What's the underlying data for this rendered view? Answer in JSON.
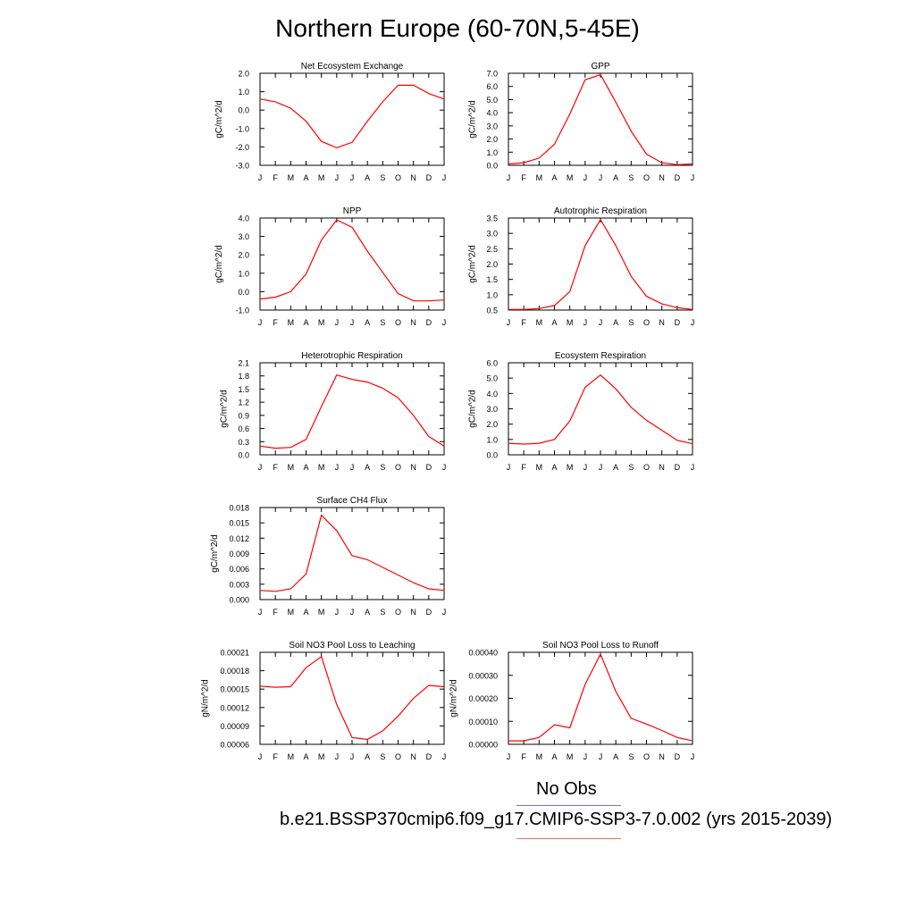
{
  "title": "Northern Europe (60-70N,5-45E)",
  "months": [
    "J",
    "F",
    "M",
    "A",
    "M",
    "J",
    "J",
    "A",
    "S",
    "O",
    "N",
    "D",
    "J"
  ],
  "legend": {
    "obs": "No Obs",
    "run": "b.e21.BSSP370cmip6.f09_g17.CMIP6-SSP3-7.0.002 (yrs 2015-2039)"
  },
  "colors": {
    "model": "#ff0000",
    "obs_legend": "#6f6fff",
    "run_legend": "#ff6f6f"
  },
  "chart_data": [
    {
      "type": "line",
      "title": "Net Ecosystem Exchange",
      "ylabel": "gC/m^2/d",
      "ylim": [
        -3.0,
        2.0
      ],
      "yticks": [
        "-3.0",
        "-2.0",
        "-1.0",
        "0.0",
        "1.0",
        "2.0"
      ],
      "tickvals": [
        -3,
        -2,
        -1,
        0,
        1,
        2
      ],
      "values": [
        0.6,
        0.45,
        0.1,
        -0.6,
        -1.7,
        -2.05,
        -1.75,
        -0.6,
        0.45,
        1.35,
        1.35,
        0.9,
        0.6
      ]
    },
    {
      "type": "line",
      "title": "GPP",
      "ylabel": "gC/m^2/d",
      "ylim": [
        0.0,
        7.0
      ],
      "yticks": [
        "0.0",
        "1.0",
        "2.0",
        "3.0",
        "4.0",
        "5.0",
        "6.0",
        "7.0"
      ],
      "tickvals": [
        0,
        1,
        2,
        3,
        4,
        5,
        6,
        7
      ],
      "values": [
        0.1,
        0.2,
        0.55,
        1.6,
        3.9,
        6.5,
        6.9,
        4.8,
        2.6,
        0.85,
        0.2,
        0.05,
        0.1
      ]
    },
    {
      "type": "line",
      "title": "NPP",
      "ylabel": "gC/m^2/d",
      "ylim": [
        -1.0,
        4.0
      ],
      "yticks": [
        "-1.0",
        "0.0",
        "1.0",
        "2.0",
        "3.0",
        "4.0"
      ],
      "tickvals": [
        -1,
        0,
        1,
        2,
        3,
        4
      ],
      "values": [
        -0.4,
        -0.3,
        0.0,
        0.95,
        2.8,
        3.9,
        3.5,
        2.2,
        1.05,
        -0.1,
        -0.5,
        -0.5,
        -0.45
      ]
    },
    {
      "type": "line",
      "title": "Autotrophic Respiration",
      "ylabel": "gC/m^2/d",
      "ylim": [
        0.5,
        3.5
      ],
      "yticks": [
        "0.5",
        "1.0",
        "1.5",
        "2.0",
        "2.5",
        "3.0",
        "3.5"
      ],
      "tickvals": [
        0.5,
        1.0,
        1.5,
        2.0,
        2.5,
        3.0,
        3.5
      ],
      "values": [
        0.52,
        0.52,
        0.55,
        0.65,
        1.1,
        2.6,
        3.45,
        2.6,
        1.6,
        0.95,
        0.7,
        0.58,
        0.52
      ]
    },
    {
      "type": "line",
      "title": "Heterotrophic Respiration",
      "ylabel": "gC/m^2/d",
      "ylim": [
        0.0,
        2.1
      ],
      "yticks": [
        "0.0",
        "0.3",
        "0.6",
        "0.9",
        "1.2",
        "1.5",
        "1.8",
        "2.1"
      ],
      "tickvals": [
        0,
        0.3,
        0.6,
        0.9,
        1.2,
        1.5,
        1.8,
        2.1
      ],
      "values": [
        0.2,
        0.15,
        0.17,
        0.35,
        1.1,
        1.82,
        1.72,
        1.66,
        1.52,
        1.3,
        0.9,
        0.42,
        0.2
      ]
    },
    {
      "type": "line",
      "title": "Ecosystem Respiration",
      "ylabel": "gC/m^2/d",
      "ylim": [
        0.0,
        6.0
      ],
      "yticks": [
        "0.0",
        "1.0",
        "2.0",
        "3.0",
        "4.0",
        "5.0",
        "6.0"
      ],
      "tickvals": [
        0,
        1,
        2,
        3,
        4,
        5,
        6
      ],
      "values": [
        0.75,
        0.7,
        0.75,
        1.0,
        2.2,
        4.4,
        5.2,
        4.3,
        3.1,
        2.25,
        1.6,
        0.95,
        0.72
      ]
    },
    {
      "type": "line",
      "title": "Surface CH4 Flux",
      "ylabel": "gC/m^2/d",
      "ylim": [
        0.0,
        0.018
      ],
      "yticks": [
        "0.000",
        "0.003",
        "0.006",
        "0.009",
        "0.012",
        "0.015",
        "0.018"
      ],
      "tickvals": [
        0,
        0.003,
        0.006,
        0.009,
        0.012,
        0.015,
        0.018
      ],
      "values": [
        0.0018,
        0.0016,
        0.0021,
        0.005,
        0.0165,
        0.0135,
        0.0086,
        0.0078,
        0.0063,
        0.0048,
        0.0033,
        0.0021,
        0.0018
      ]
    },
    {
      "type": "line",
      "title": "Soil NO3 Pool Loss to Leaching",
      "ylabel": "gN/m^2/d",
      "ylim": [
        6e-05,
        0.00021
      ],
      "yticks": [
        "0.00006",
        "0.00009",
        "0.00012",
        "0.00015",
        "0.00018",
        "0.00021"
      ],
      "tickvals": [
        6e-05,
        9e-05,
        0.00012,
        0.00015,
        0.00018,
        0.00021
      ],
      "values": [
        0.000155,
        0.000153,
        0.000154,
        0.000185,
        0.000203,
        0.000125,
        7.1e-05,
        6.8e-05,
        8.2e-05,
        0.000106,
        0.000135,
        0.000156,
        0.000154
      ]
    },
    {
      "type": "line",
      "title": "Soil NO3 Pool Loss to Runoff",
      "ylabel": "gN/m^2/d",
      "ylim": [
        0.0,
        0.0004
      ],
      "yticks": [
        "0.00000",
        "0.00010",
        "0.00020",
        "0.00030",
        "0.00040"
      ],
      "tickvals": [
        0,
        0.0001,
        0.0002,
        0.0003,
        0.0004
      ],
      "values": [
        1.5e-05,
        1.5e-05,
        3e-05,
        8.5e-05,
        7.2e-05,
        0.00026,
        0.000392,
        0.00023,
        0.000113,
        8.8e-05,
        6e-05,
        3e-05,
        1.5e-05
      ]
    }
  ]
}
